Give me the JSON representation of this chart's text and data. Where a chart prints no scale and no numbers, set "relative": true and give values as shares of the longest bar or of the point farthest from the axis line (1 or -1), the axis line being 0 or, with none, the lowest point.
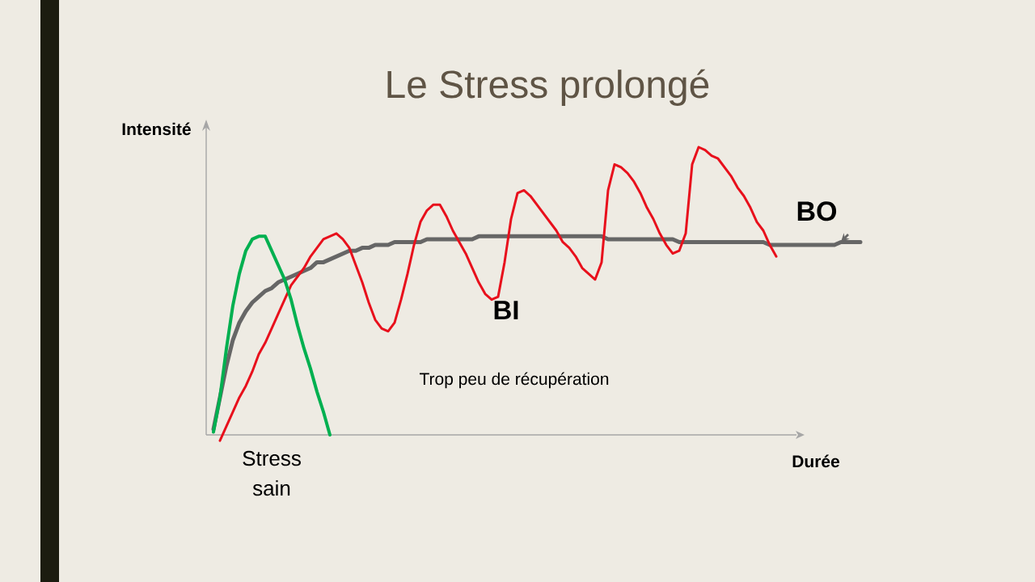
{
  "chart_data": {
    "type": "line",
    "title": "Le Stress prolongé",
    "xlabel": "Durée",
    "ylabel": "Intensité",
    "relative": true,
    "line_style": "solid",
    "categories": [
      null,
      null,
      null,
      null,
      null,
      null,
      null,
      null,
      null,
      null,
      null,
      null,
      null,
      null,
      null,
      null,
      null,
      null,
      null,
      null,
      null,
      null,
      null,
      null,
      null,
      null,
      null,
      null,
      null,
      null,
      null,
      null,
      null,
      null,
      null,
      null,
      null,
      null,
      null,
      null,
      null,
      null,
      null,
      null,
      null,
      null,
      null,
      null,
      null,
      null,
      null,
      null,
      null,
      null,
      null,
      null,
      null,
      null,
      null,
      null,
      null,
      null,
      null,
      null,
      null,
      null,
      null,
      null,
      null,
      null,
      null,
      null,
      null,
      null,
      null,
      null,
      null,
      null,
      null,
      null,
      null,
      null,
      null,
      null,
      null,
      null,
      null,
      null,
      null,
      null,
      null,
      null,
      null,
      null,
      null,
      null,
      null,
      null,
      null,
      null,
      null
    ],
    "series": [
      {
        "color": "#666666",
        "values": [
          0.02,
          0.13,
          0.24,
          0.33,
          0.39,
          0.43,
          0.46,
          0.48,
          0.5,
          0.51,
          0.53,
          0.54,
          0.55,
          0.56,
          0.57,
          0.58,
          0.6,
          0.6,
          0.61,
          0.62,
          0.63,
          0.64,
          0.64,
          0.65,
          0.65,
          0.66,
          0.66,
          0.66,
          0.67,
          0.67,
          0.67,
          0.67,
          0.67,
          0.68,
          0.68,
          0.68,
          0.68,
          0.68,
          0.68,
          0.68,
          0.68,
          0.69,
          0.69,
          0.69,
          0.69,
          0.69,
          0.69,
          0.69,
          0.69,
          0.69,
          0.69,
          0.69,
          0.69,
          0.69,
          0.69,
          0.69,
          0.69,
          0.69,
          0.69,
          0.69,
          0.69,
          0.68,
          0.68,
          0.68,
          0.68,
          0.68,
          0.68,
          0.68,
          0.68,
          0.68,
          0.68,
          0.68,
          0.67,
          0.67,
          0.67,
          0.67,
          0.67,
          0.67,
          0.67,
          0.67,
          0.67,
          0.67,
          0.67,
          0.67,
          0.67,
          0.67,
          0.66,
          0.66,
          0.66,
          0.66,
          0.66,
          0.66,
          0.66,
          0.66,
          0.66,
          0.66,
          0.66,
          0.67,
          0.67,
          0.67,
          0.67
        ]
      },
      {
        "color": "#e8101c",
        "values": [
          null,
          -0.02,
          0.03,
          0.08,
          0.13,
          0.17,
          0.22,
          0.28,
          0.32,
          0.37,
          0.42,
          0.47,
          0.52,
          0.55,
          0.58,
          0.62,
          0.65,
          0.68,
          0.69,
          0.7,
          0.68,
          0.65,
          0.59,
          0.53,
          0.46,
          0.4,
          0.37,
          0.36,
          0.39,
          0.47,
          0.56,
          0.66,
          0.74,
          0.78,
          0.8,
          0.8,
          0.76,
          0.71,
          0.67,
          0.63,
          0.58,
          0.53,
          0.49,
          0.47,
          0.48,
          0.6,
          0.75,
          0.84,
          0.85,
          0.83,
          0.8,
          0.77,
          0.74,
          0.71,
          0.67,
          0.65,
          0.62,
          0.58,
          0.56,
          0.54,
          0.6,
          0.85,
          0.94,
          0.93,
          0.91,
          0.88,
          0.84,
          0.79,
          0.75,
          0.7,
          0.66,
          0.63,
          0.64,
          0.7,
          0.94,
          1.0,
          0.99,
          0.97,
          0.96,
          0.93,
          0.9,
          0.86,
          0.83,
          0.79,
          0.74,
          0.71,
          0.66,
          0.62,
          null,
          null,
          null,
          null,
          null,
          null,
          null,
          null,
          null,
          null,
          null,
          null,
          null
        ]
      },
      {
        "name": "Stress sain",
        "color": "#00b050",
        "values": [
          0.01,
          0.13,
          0.3,
          0.45,
          0.56,
          0.64,
          0.68,
          0.69,
          0.69,
          0.64,
          0.59,
          0.54,
          0.47,
          0.38,
          0.3,
          0.23,
          0.15,
          0.08,
          0,
          null,
          null,
          null,
          null,
          null,
          null,
          null,
          null,
          null,
          null,
          null,
          null,
          null,
          null,
          null,
          null,
          null,
          null,
          null,
          null,
          null,
          null,
          null,
          null,
          null,
          null,
          null,
          null,
          null,
          null,
          null,
          null,
          null,
          null,
          null,
          null,
          null,
          null,
          null,
          null,
          null,
          null,
          null,
          null,
          null,
          null,
          null,
          null,
          null,
          null,
          null,
          null,
          null,
          null,
          null,
          null,
          null,
          null,
          null,
          null,
          null,
          null,
          null,
          null,
          null,
          null,
          null,
          null,
          null,
          null,
          null,
          null,
          null,
          null,
          null,
          null,
          null,
          null,
          null,
          null,
          null,
          null
        ]
      }
    ],
    "annotations": [
      "BO",
      "BI",
      "Trop peu de récupération"
    ]
  }
}
